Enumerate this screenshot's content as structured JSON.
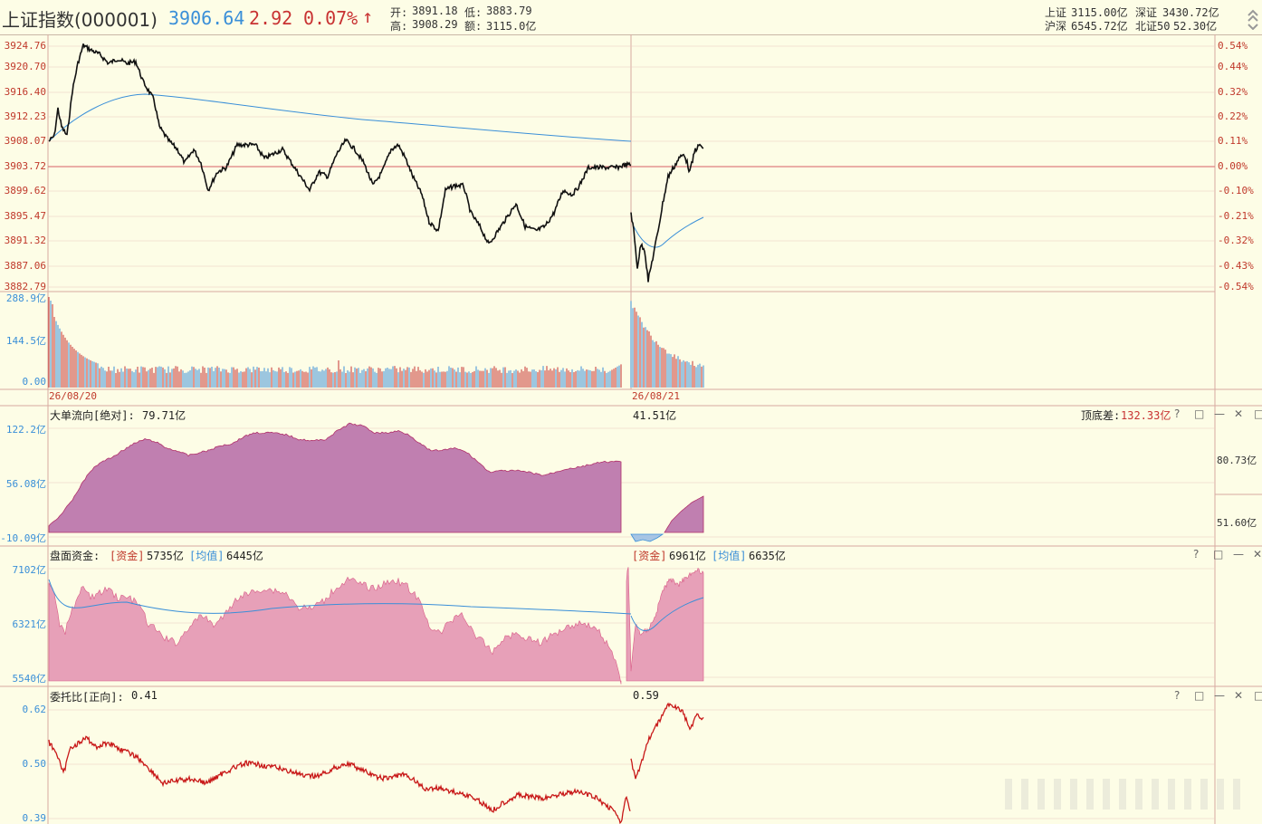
{
  "header": {
    "title": "上证指数(000001)",
    "price": "3906.64",
    "change": "2.92",
    "change_pct": "0.07%",
    "arrow": "↑",
    "open_label": "开:",
    "open": "3891.18",
    "low_label": "低:",
    "low": "3883.79",
    "high_label": "高:",
    "high": "3908.29",
    "amount_label": "额:",
    "amount": "3115.0亿",
    "sh_label": "上证",
    "sh": "3115.00亿",
    "sz_label": "深证",
    "sz": "3430.72亿",
    "hs_label": "沪深",
    "hs": "6545.72亿",
    "bj_label": "北证50",
    "bj": "52.30亿"
  },
  "price_axis_left": [
    "3924.76",
    "3920.70",
    "3916.40",
    "3912.23",
    "3908.07",
    "3903.72",
    "3899.62",
    "3895.47",
    "3891.32",
    "3887.06",
    "3882.79"
  ],
  "price_axis_right": [
    "0.54%",
    "0.44%",
    "0.32%",
    "0.22%",
    "0.11%",
    "0.00%",
    "-0.10%",
    "-0.21%",
    "-0.32%",
    "-0.43%",
    "-0.54%"
  ],
  "volume_axis": [
    "288.9亿",
    "144.5亿",
    "0.00"
  ],
  "dates": [
    "26/08/20",
    "26/08/21"
  ],
  "panel1": {
    "label": "大单流向[绝对]:",
    "value": "79.71亿",
    "value2": "41.51亿",
    "right_label": "顶底差:",
    "right_value": "132.33亿",
    "axis": [
      "122.2亿",
      "56.08亿",
      "-10.09亿"
    ],
    "right_axis": [
      "80.73亿",
      "51.60亿"
    ]
  },
  "panel2": {
    "label": "盘面资金:",
    "fund_tag": "[资金]",
    "fund": "5735亿",
    "avg_tag": "[均值]",
    "avg": "6445亿",
    "fund2": "6961亿",
    "avg2": "6635亿",
    "axis": [
      "7102亿",
      "6321亿",
      "5540亿"
    ]
  },
  "panel3": {
    "label": "委托比[正向]:",
    "value": "0.41",
    "value2": "0.59",
    "axis": [
      "0.62",
      "0.50",
      "0.39"
    ]
  },
  "controls": [
    "?",
    "□",
    "—",
    "✕",
    "□"
  ],
  "colors": {
    "up": "#c83232",
    "blue": "#3a8fd8",
    "purple": "#b87aae",
    "pink": "#e59ab4",
    "grid": "#e7c7c0",
    "bg": "#fdfde6"
  }
}
